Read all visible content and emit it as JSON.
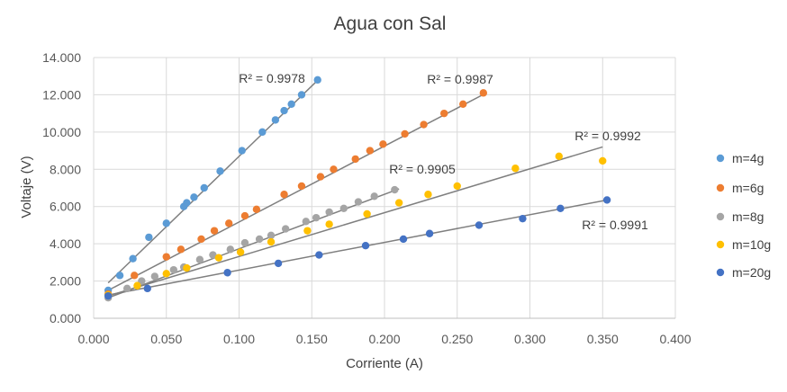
{
  "chart_data": {
    "type": "scatter",
    "title": "Agua con Sal",
    "xlabel": "Corriente (A)",
    "ylabel": "Voltaje (V)",
    "xlim": [
      0,
      0.4
    ],
    "ylim": [
      0,
      14
    ],
    "x_ticks": [
      "0.000",
      "0.050",
      "0.100",
      "0.150",
      "0.200",
      "0.250",
      "0.300",
      "0.350",
      "0.400"
    ],
    "y_ticks": [
      "0.000",
      "2.000",
      "4.000",
      "6.000",
      "8.000",
      "10.000",
      "12.000",
      "14.000"
    ],
    "grid": true,
    "legend_position": "right",
    "series": [
      {
        "name": "m=4g",
        "color": "#5b9bd5",
        "r2": "R² = 0.9978",
        "trend": [
          [
            0.01,
            1.9
          ],
          [
            0.155,
            12.85
          ]
        ],
        "points": [
          [
            0.01,
            1.5
          ],
          [
            0.018,
            2.3
          ],
          [
            0.027,
            3.2
          ],
          [
            0.038,
            4.35
          ],
          [
            0.05,
            5.1
          ],
          [
            0.062,
            6.0
          ],
          [
            0.064,
            6.2
          ],
          [
            0.069,
            6.5
          ],
          [
            0.076,
            7.0
          ],
          [
            0.087,
            7.9
          ],
          [
            0.102,
            9.0
          ],
          [
            0.116,
            10.0
          ],
          [
            0.125,
            10.65
          ],
          [
            0.131,
            11.15
          ],
          [
            0.136,
            11.5
          ],
          [
            0.143,
            12.0
          ],
          [
            0.154,
            12.8
          ]
        ]
      },
      {
        "name": "m=6g",
        "color": "#ed7d31",
        "r2": "R² = 0.9987",
        "trend": [
          [
            0.01,
            1.5
          ],
          [
            0.27,
            12.1
          ]
        ],
        "points": [
          [
            0.01,
            1.3
          ],
          [
            0.028,
            2.3
          ],
          [
            0.05,
            3.3
          ],
          [
            0.06,
            3.7
          ],
          [
            0.074,
            4.25
          ],
          [
            0.083,
            4.7
          ],
          [
            0.093,
            5.1
          ],
          [
            0.104,
            5.5
          ],
          [
            0.112,
            5.85
          ],
          [
            0.131,
            6.65
          ],
          [
            0.143,
            7.1
          ],
          [
            0.156,
            7.6
          ],
          [
            0.165,
            8.0
          ],
          [
            0.18,
            8.55
          ],
          [
            0.19,
            9.0
          ],
          [
            0.199,
            9.35
          ],
          [
            0.214,
            9.9
          ],
          [
            0.227,
            10.4
          ],
          [
            0.241,
            11.0
          ],
          [
            0.254,
            11.5
          ],
          [
            0.268,
            12.1
          ]
        ]
      },
      {
        "name": "m=8g",
        "color": "#a5a5a5",
        "r2": "R² = 0.9992",
        "trend": [
          [
            0.01,
            1.1
          ],
          [
            0.21,
            6.95
          ]
        ],
        "points": [
          [
            0.01,
            1.1
          ],
          [
            0.023,
            1.6
          ],
          [
            0.033,
            2.0
          ],
          [
            0.042,
            2.25
          ],
          [
            0.055,
            2.6
          ],
          [
            0.062,
            2.75
          ],
          [
            0.073,
            3.15
          ],
          [
            0.082,
            3.4
          ],
          [
            0.094,
            3.7
          ],
          [
            0.104,
            4.05
          ],
          [
            0.114,
            4.25
          ],
          [
            0.122,
            4.45
          ],
          [
            0.132,
            4.8
          ],
          [
            0.146,
            5.2
          ],
          [
            0.153,
            5.4
          ],
          [
            0.162,
            5.7
          ],
          [
            0.172,
            5.9
          ],
          [
            0.182,
            6.25
          ],
          [
            0.193,
            6.55
          ],
          [
            0.207,
            6.9
          ]
        ]
      },
      {
        "name": "m=10g",
        "color": "#ffc000",
        "r2": "R² = 0.9905",
        "trend": [
          [
            0.01,
            1.2
          ],
          [
            0.35,
            9.2
          ]
        ],
        "points": [
          [
            0.01,
            1.25
          ],
          [
            0.03,
            1.75
          ],
          [
            0.05,
            2.4
          ],
          [
            0.064,
            2.7
          ],
          [
            0.086,
            3.25
          ],
          [
            0.101,
            3.55
          ],
          [
            0.122,
            4.1
          ],
          [
            0.147,
            4.7
          ],
          [
            0.162,
            5.05
          ],
          [
            0.188,
            5.6
          ],
          [
            0.21,
            6.2
          ],
          [
            0.23,
            6.65
          ],
          [
            0.25,
            7.1
          ],
          [
            0.29,
            8.05
          ],
          [
            0.32,
            8.7
          ],
          [
            0.35,
            8.45
          ]
        ]
      },
      {
        "name": "m=20g",
        "color": "#4472c4",
        "r2": "R² = 0.9991",
        "trend": [
          [
            0.01,
            1.25
          ],
          [
            0.353,
            6.35
          ]
        ],
        "points": [
          [
            0.01,
            1.2
          ],
          [
            0.037,
            1.6
          ],
          [
            0.092,
            2.45
          ],
          [
            0.127,
            2.95
          ],
          [
            0.155,
            3.4
          ],
          [
            0.187,
            3.9
          ],
          [
            0.213,
            4.25
          ],
          [
            0.231,
            4.55
          ],
          [
            0.265,
            5.0
          ],
          [
            0.295,
            5.35
          ],
          [
            0.321,
            5.9
          ],
          [
            0.353,
            6.35
          ]
        ]
      }
    ]
  }
}
